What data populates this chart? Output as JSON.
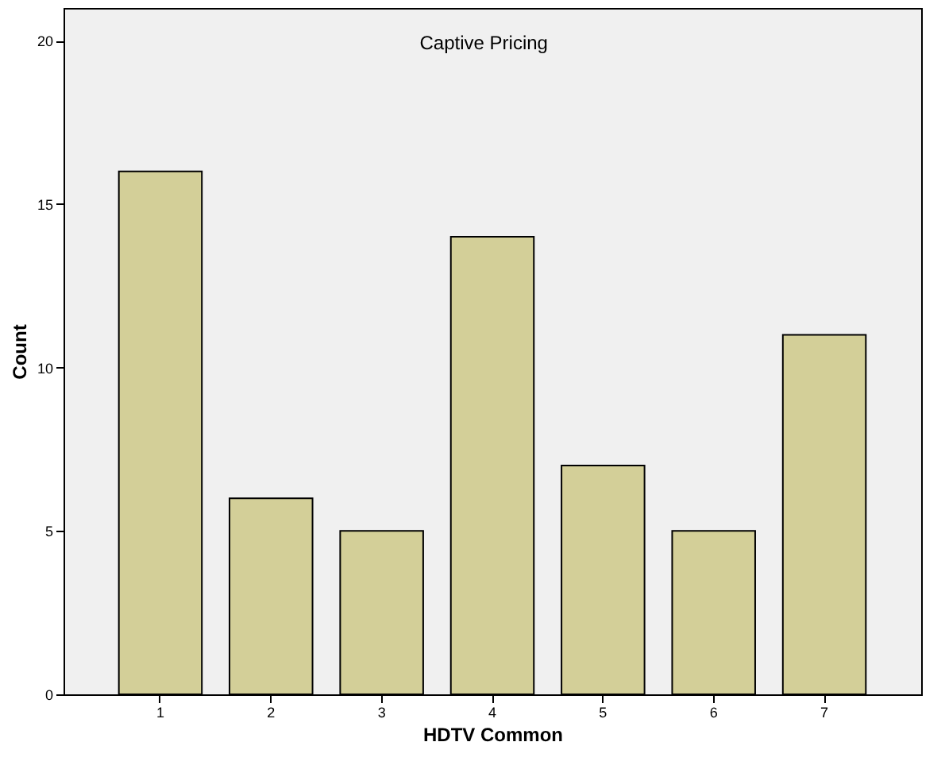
{
  "chart_data": {
    "type": "bar",
    "title": "Captive Pricing",
    "xlabel": "HDTV Common",
    "ylabel": "Count",
    "categories": [
      "1",
      "2",
      "3",
      "4",
      "5",
      "6",
      "7"
    ],
    "values": [
      16,
      6,
      5,
      14,
      7,
      5,
      11
    ],
    "color": "#d3cf98",
    "ylim": [
      0,
      21
    ],
    "yticks": [
      0,
      5,
      10,
      15,
      20
    ],
    "grid": false
  }
}
